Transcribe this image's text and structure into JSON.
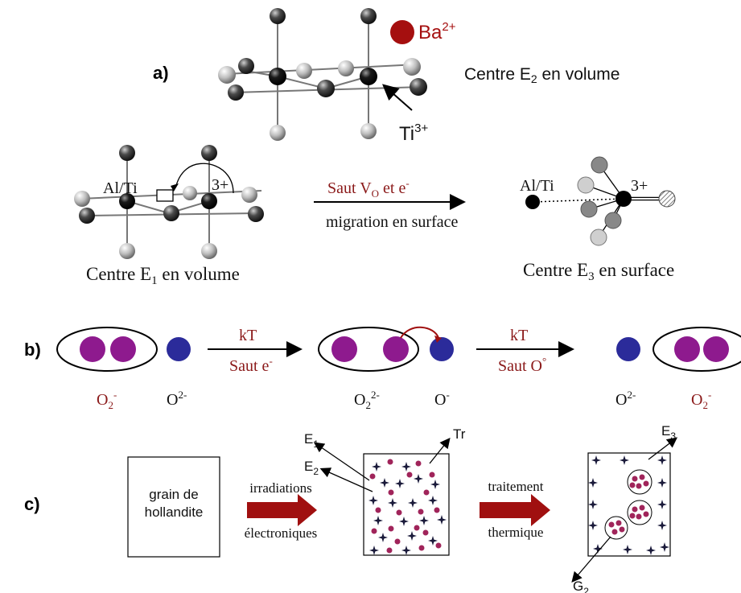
{
  "panel_a": {
    "label": "a)",
    "legend_ba": "Ba",
    "legend_ba_charge": "2+",
    "center_e2_prefix": "Centre E",
    "center_e2_sub": "2",
    "center_e2_suffix": " en volume",
    "ti_label": "Ti",
    "ti_charge": "3+"
  },
  "panel_a2": {
    "left_altitle": "Al/Ti",
    "left_charge": "3+",
    "arrow_top_prefix": "Saut V",
    "arrow_top_sub": "O",
    "arrow_top_suffix": " et e",
    "arrow_top_sup": "-",
    "arrow_bottom": "migration en surface",
    "right_altitle": "Al/Ti",
    "right_charge": "3+",
    "center_e1_prefix": "Centre E",
    "center_e1_sub": "1",
    "center_e1_suffix": " en volume",
    "center_e3_prefix": "Centre E",
    "center_e3_sub": "3",
    "center_e3_suffix": " en surface"
  },
  "panel_b": {
    "label": "b)",
    "arrow1_top": "kT",
    "arrow1_bottom": "Saut e",
    "arrow1_bottom_sup": "-",
    "arrow2_top": "kT",
    "arrow2_bottom": "Saut O",
    "arrow2_bottom_sup": "°",
    "label_o2m": "O",
    "label_o2m_sub": "2",
    "label_o2m_sup": "-",
    "label_o2m2": "O",
    "label_o2m2_sup": "2-",
    "label_o22m": "O",
    "label_o22m_sub": "2",
    "label_o22m_sup": "2-",
    "label_om": "O",
    "label_om_sup": "-",
    "label_o2m2_right": "O",
    "label_o2m2_right_sup": "2-",
    "label_o2m_right": "O",
    "label_o2m_right_sub": "2",
    "label_o2m_right_sup": "-"
  },
  "panel_c": {
    "label": "c)",
    "grain_line1": "grain de",
    "grain_line2": "hollandite",
    "arrow1_top": "irradiations",
    "arrow1_bottom": "électroniques",
    "arrow2_top": "traitement",
    "arrow2_bottom": "thermique",
    "e1": "E",
    "e1_sub": "1",
    "e2": "E",
    "e2_sub": "2",
    "tr": "Tr",
    "e3": "E",
    "e3_sub": "3",
    "g2": "G",
    "g2_sub": "2"
  },
  "colors": {
    "purple": "#8e1a8e",
    "blue": "#2b2b9a",
    "barium": "#a50f0f",
    "red_text": "#8b1a1a",
    "arrow_fill": "#a01010"
  }
}
